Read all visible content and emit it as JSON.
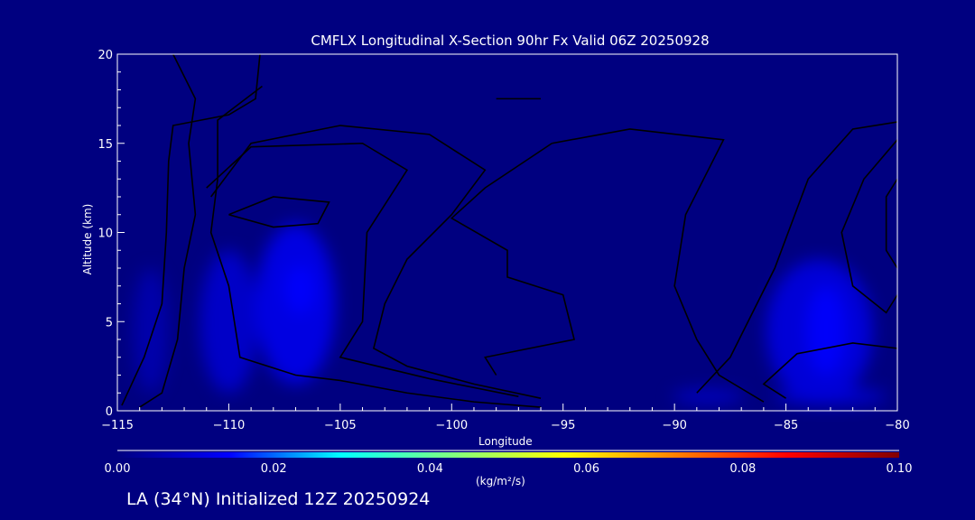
{
  "chart_data": {
    "type": "heatmap",
    "title": "CMFLX Longitudinal X-Section 90hr  Fx Valid 06Z 20250928",
    "xlabel": "Longitude",
    "ylabel": "Altitude (km)",
    "xlim": [
      -115,
      -80
    ],
    "ylim": [
      0,
      20
    ],
    "xticks": [
      "-115",
      "-110",
      "-105",
      "-100",
      "-95",
      "-90",
      "-85",
      "-80"
    ],
    "xtick_values": [
      -115,
      -110,
      -105,
      -100,
      -95,
      -90,
      -85,
      -80
    ],
    "yticks": [
      "0",
      "5",
      "10",
      "15",
      "20"
    ],
    "ytick_values": [
      0,
      5,
      10,
      15,
      20
    ],
    "colorbar": {
      "range": [
        0,
        0.1
      ],
      "ticks": [
        "0.00",
        "0.02",
        "0.04",
        "0.06",
        "0.08",
        "0.10"
      ],
      "units": "(kg/m²/s)",
      "colors": [
        "#000080",
        "#0000ff",
        "#00ffff",
        "#80ff80",
        "#ffff00",
        "#ff8000",
        "#ff0000",
        "#800000"
      ]
    },
    "filled_regions": [
      {
        "lon": -113.5,
        "alt": 4.5,
        "lon_half": 0.8,
        "alt_half": 3.5,
        "value": 0.008
      },
      {
        "lon": -110,
        "alt": 5,
        "lon_half": 1.3,
        "alt_half": 4,
        "value": 0.013
      },
      {
        "lon": -107,
        "alt": 6,
        "lon_half": 1.8,
        "alt_half": 4.5,
        "value": 0.018
      },
      {
        "lon": -106.8,
        "alt": 6.8,
        "lon_half": 0.7,
        "alt_half": 1.4,
        "value": 0.022
      },
      {
        "lon": -83.5,
        "alt": 4.5,
        "lon_half": 2.4,
        "alt_half": 4,
        "value": 0.016
      },
      {
        "lon": -83.2,
        "alt": 4.5,
        "lon_half": 0.9,
        "alt_half": 2.5,
        "value": 0.02
      },
      {
        "lon": -88.5,
        "alt": 0.8,
        "lon_half": 1.6,
        "alt_half": 0.4,
        "value": 0.012
      },
      {
        "lon": -83,
        "alt": 0.8,
        "lon_half": 2.5,
        "alt_half": 0.5,
        "value": 0.014
      }
    ],
    "contours": [
      [
        [
          -112.5,
          20
        ],
        [
          -111.5,
          17.5
        ],
        [
          -111.8,
          15
        ],
        [
          -111.5,
          11
        ],
        [
          -112,
          8
        ],
        [
          -112.3,
          4
        ],
        [
          -113,
          1
        ],
        [
          -114,
          0.2
        ]
      ],
      [
        [
          -114.8,
          0.3
        ],
        [
          -113.8,
          3
        ],
        [
          -113,
          6
        ],
        [
          -112.8,
          10
        ],
        [
          -112.7,
          14
        ],
        [
          -112.5,
          16
        ],
        [
          -110,
          16.6
        ],
        [
          -108.8,
          17.5
        ],
        [
          -108.6,
          20
        ]
      ],
      [
        [
          -108.5,
          18.2
        ],
        [
          -110.5,
          16.3
        ],
        [
          -110.5,
          13
        ],
        [
          -110.8,
          10
        ],
        [
          -110,
          7
        ],
        [
          -109.5,
          3
        ],
        [
          -107,
          2
        ],
        [
          -105,
          1.7
        ],
        [
          -102,
          1
        ],
        [
          -99,
          0.5
        ],
        [
          -96,
          0.2
        ]
      ],
      [
        [
          -110,
          11
        ],
        [
          -108,
          12
        ],
        [
          -105.5,
          11.7
        ],
        [
          -106,
          10.5
        ],
        [
          -108,
          10.3
        ],
        [
          -110,
          11
        ]
      ],
      [
        [
          -110.8,
          12
        ],
        [
          -109,
          15
        ],
        [
          -105,
          16
        ],
        [
          -101,
          15.5
        ],
        [
          -98.5,
          13.5
        ],
        [
          -100,
          11
        ],
        [
          -102,
          8.5
        ],
        [
          -103,
          6
        ],
        [
          -103.5,
          3.5
        ],
        [
          -102,
          2.5
        ],
        [
          -99,
          1.5
        ],
        [
          -96,
          0.7
        ]
      ],
      [
        [
          -111,
          12.5
        ],
        [
          -109,
          14.8
        ],
        [
          -104,
          15
        ],
        [
          -102,
          13.5
        ],
        [
          -103.8,
          10
        ],
        [
          -104,
          5
        ],
        [
          -105,
          3
        ],
        [
          -101,
          1.8
        ],
        [
          -97,
          0.8
        ]
      ],
      [
        [
          -98,
          17.5
        ],
        [
          -96,
          17.5
        ]
      ],
      [
        [
          -95.5,
          15
        ],
        [
          -92,
          15.8
        ],
        [
          -87.8,
          15.2
        ],
        [
          -89.5,
          11
        ],
        [
          -90,
          7
        ],
        [
          -89,
          4
        ],
        [
          -88,
          2
        ],
        [
          -86,
          0.5
        ]
      ],
      [
        [
          -95.5,
          15
        ],
        [
          -98.5,
          12.5
        ],
        [
          -100,
          10.8
        ],
        [
          -97.5,
          9
        ],
        [
          -97.5,
          7.5
        ],
        [
          -95,
          6.5
        ],
        [
          -94.5,
          4
        ],
        [
          -98.5,
          3
        ],
        [
          -98,
          2
        ]
      ],
      [
        [
          -80,
          16.2
        ],
        [
          -82,
          15.8
        ],
        [
          -84,
          13
        ],
        [
          -85.5,
          8
        ],
        [
          -87.5,
          3
        ],
        [
          -89,
          1
        ]
      ],
      [
        [
          -80,
          15.2
        ],
        [
          -81.5,
          13
        ],
        [
          -82.5,
          10
        ],
        [
          -82,
          7
        ],
        [
          -80.5,
          5.5
        ],
        [
          -80,
          6.5
        ]
      ],
      [
        [
          -80,
          3.5
        ],
        [
          -82,
          3.8
        ],
        [
          -84.5,
          3.2
        ],
        [
          -86,
          1.5
        ],
        [
          -85,
          0.7
        ]
      ],
      [
        [
          -80,
          13
        ],
        [
          -80.5,
          12
        ],
        [
          -80.5,
          9
        ],
        [
          -80,
          8
        ]
      ]
    ],
    "footer": "LA (34°N) Initialized 12Z 20250924"
  }
}
